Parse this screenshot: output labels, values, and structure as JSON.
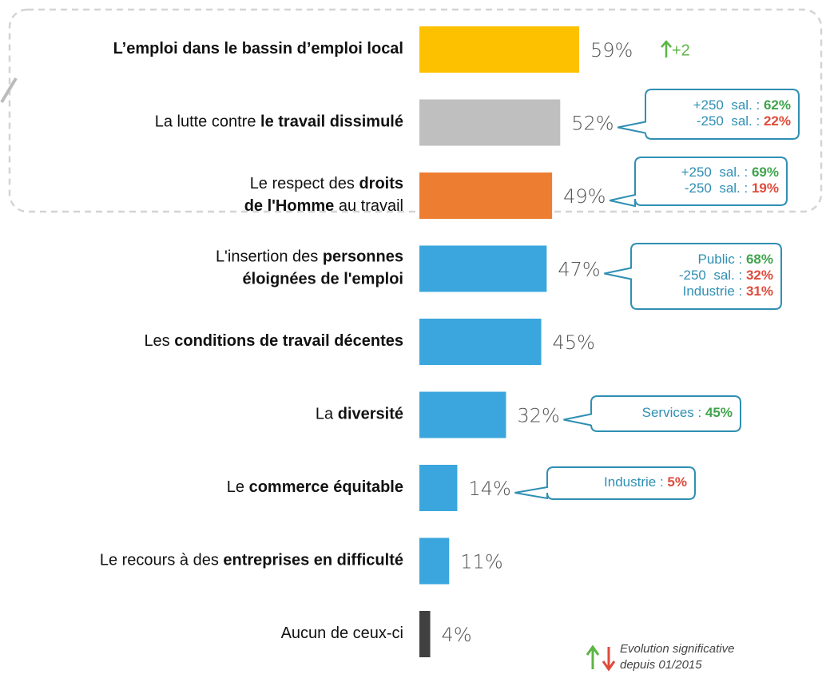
{
  "chart_data": {
    "type": "bar",
    "orientation": "horizontal",
    "categories": [
      [
        [
          {
            "text": "L’emploi dans le bassin d’emploi local",
            "bold": true
          }
        ]
      ],
      [
        [
          {
            "text": "La lutte contre ",
            "bold": false
          },
          {
            "text": "le travail dissimulé",
            "bold": true
          }
        ]
      ],
      [
        [
          {
            "text": "Le respect des ",
            "bold": false
          },
          {
            "text": "droits",
            "bold": true
          }
        ],
        [
          {
            "text": "de l'Homme",
            "bold": true
          },
          {
            "text": " au travail",
            "bold": false
          }
        ]
      ],
      [
        [
          {
            "text": "L'insertion des ",
            "bold": false
          },
          {
            "text": "personnes",
            "bold": true
          }
        ],
        [
          {
            "text": "éloignées de l'emploi",
            "bold": true
          }
        ]
      ],
      [
        [
          {
            "text": "Les ",
            "bold": false
          },
          {
            "text": "conditions de travail décentes",
            "bold": true
          }
        ]
      ],
      [
        [
          {
            "text": "La ",
            "bold": false
          },
          {
            "text": "diversité",
            "bold": true
          }
        ]
      ],
      [
        [
          {
            "text": "Le ",
            "bold": false
          },
          {
            "text": "commerce équitable",
            "bold": true
          }
        ]
      ],
      [
        [
          {
            "text": "Le recours à des ",
            "bold": false
          },
          {
            "text": "entreprises en difficulté",
            "bold": true
          }
        ]
      ],
      [
        [
          {
            "text": "Aucun de ceux-ci",
            "bold": false
          }
        ]
      ]
    ],
    "values": [
      59,
      52,
      49,
      47,
      45,
      32,
      14,
      11,
      4
    ],
    "value_labels": [
      "59%",
      "52%",
      "49%",
      "47%",
      "45%",
      "32%",
      "14%",
      "11%",
      "4%"
    ],
    "colors": [
      "#fdc100",
      "#bfbfbf",
      "#ed7d31",
      "#3aa6dd",
      "#3aa6dd",
      "#3aa6dd",
      "#3aa6dd",
      "#3aa6dd",
      "#404040"
    ],
    "changes": [
      {
        "text": "+2",
        "direction": "up",
        "color": "#5cb545"
      },
      null,
      null,
      null,
      null,
      null,
      null,
      null,
      null
    ],
    "callouts": [
      null,
      [
        {
          "label": "+250  sal. : ",
          "value": "62%",
          "color": "#3fa34d"
        },
        {
          "label": "-250  sal. : ",
          "value": "22%",
          "color": "#e04a3a"
        }
      ],
      [
        {
          "label": "+250  sal. : ",
          "value": "69%",
          "color": "#3fa34d"
        },
        {
          "label": "-250  sal. : ",
          "value": "19%",
          "color": "#e04a3a"
        }
      ],
      [
        {
          "label": "Public : ",
          "value": "68%",
          "color": "#3fa34d"
        },
        {
          "label": "-250  sal. : ",
          "value": "32%",
          "color": "#e04a3a"
        },
        {
          "label": "Industrie : ",
          "value": "31%",
          "color": "#e04a3a"
        }
      ],
      null,
      [
        {
          "label": "Services : ",
          "value": "45%",
          "color": "#3fa34d"
        }
      ],
      [
        {
          "label": "Industrie : ",
          "value": "5%",
          "color": "#e04a3a"
        }
      ],
      null,
      null
    ],
    "callout_color": "#2f8fb3",
    "legend_note": [
      "Evolution significative",
      "depuis 01/2015"
    ],
    "legend_colors": {
      "up": "#5cb545",
      "down": "#e04a3a"
    }
  }
}
